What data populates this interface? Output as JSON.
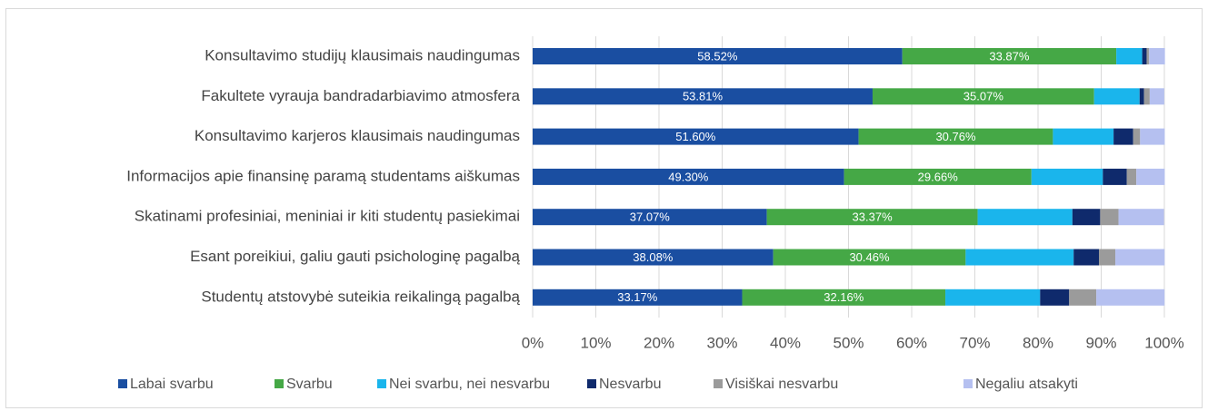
{
  "chart_data": {
    "type": "stacked_bar_horizontal",
    "categories": [
      "Konsultavimo studijų klausimais naudingumas",
      "Fakultete vyrauja bandradarbiavimo atmosfera",
      "Konsultavimo karjeros klausimais naudingumas",
      "Informacijos apie finansinę paramą studentams aiškumas",
      "Skatinami profesiniai, meniniai ir kiti studentų pasiekimai",
      "Esant poreikiui, galiu gauti psichologinę pagalbą",
      "Studentų atstovybė suteikia reikalingą pagalbą"
    ],
    "series": [
      {
        "name": "Labai svarbu",
        "color": "#1a4ea1",
        "values": [
          58.52,
          53.81,
          51.6,
          49.3,
          37.07,
          38.08,
          33.17
        ],
        "value_labels": [
          "58.52%",
          "53.81%",
          "51.60%",
          "49.30%",
          "37.07%",
          "38.08%",
          "33.17%"
        ]
      },
      {
        "name": "Svarbu",
        "color": "#45a846",
        "values": [
          33.87,
          35.07,
          30.76,
          29.66,
          33.37,
          30.46,
          32.16
        ],
        "value_labels": [
          "33.87%",
          "35.07%",
          "30.76%",
          "29.66%",
          "33.37%",
          "30.46%",
          "32.16%"
        ]
      },
      {
        "name": "Nei svarbu, nei nesvarbu",
        "color": "#1ab5ec",
        "values": [
          4.1,
          7.2,
          9.6,
          11.3,
          15.0,
          17.1,
          15.0
        ]
      },
      {
        "name": "Nesvarbu",
        "color": "#0f2a6c",
        "values": [
          0.7,
          0.7,
          3.1,
          3.8,
          4.4,
          4.0,
          4.6
        ]
      },
      {
        "name": "Visiškai nesvarbu",
        "color": "#9b9b9b",
        "values": [
          0.4,
          0.9,
          1.1,
          1.5,
          2.9,
          2.6,
          4.3
        ]
      },
      {
        "name": "Negaliu atsakyti",
        "color": "#b5c0f0",
        "values": [
          2.5,
          2.3,
          3.9,
          4.5,
          7.2,
          7.8,
          10.8
        ]
      }
    ],
    "xlim": [
      0,
      100
    ],
    "xticks": [
      {
        "value": 0,
        "label": "0%"
      },
      {
        "value": 10,
        "label": "10%"
      },
      {
        "value": 20,
        "label": "20%"
      },
      {
        "value": 30,
        "label": "30%"
      },
      {
        "value": 40,
        "label": "40%"
      },
      {
        "value": 50,
        "label": "50%"
      },
      {
        "value": 60,
        "label": "60%"
      },
      {
        "value": 70,
        "label": "70%"
      },
      {
        "value": 80,
        "label": "80%"
      },
      {
        "value": 90,
        "label": "90%"
      },
      {
        "value": 100,
        "label": "100%"
      }
    ],
    "grid": true,
    "legend": "bottom"
  }
}
